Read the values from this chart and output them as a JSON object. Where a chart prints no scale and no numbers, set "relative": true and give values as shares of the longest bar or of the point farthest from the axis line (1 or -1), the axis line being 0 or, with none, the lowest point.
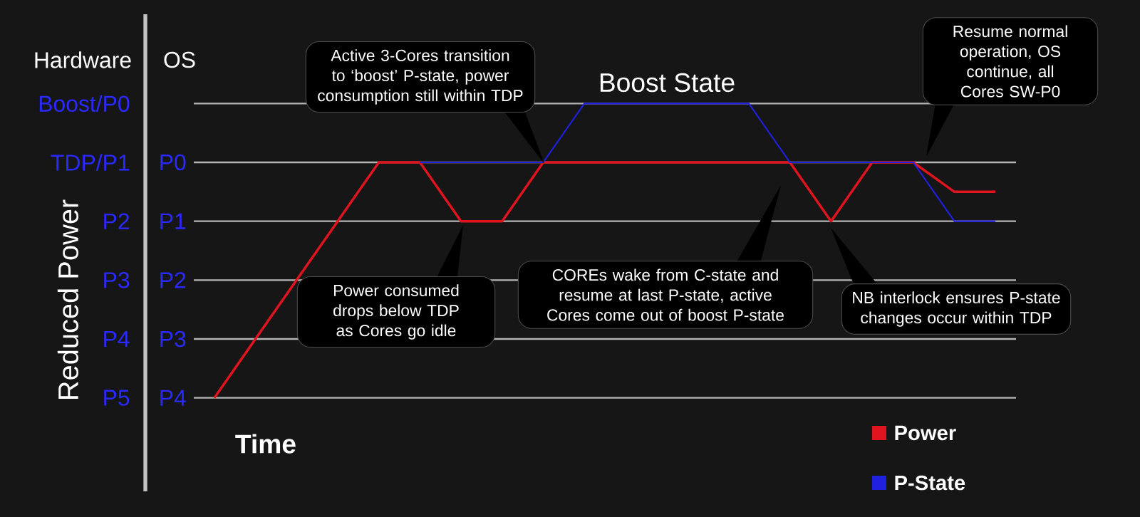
{
  "chart_data": {
    "type": "line",
    "relative": true,
    "xlabel": "Time",
    "ylabel": "Reduced Power",
    "annotations": [
      "Hardware",
      "OS",
      "Boost/P0",
      "TDP/P1",
      "P2",
      "P3",
      "P4",
      "P5",
      "P0",
      "P1",
      "P2",
      "P3",
      "P4",
      "Boost State",
      "Active 3-Cores transition to ‘boost’ P-state, power consumption still within TDP",
      "Power consumed drops below TDP as Cores go idle",
      "COREs wake from C-state and resume at last P-state, active Cores come out of boost P-state",
      "NB interlock ensures P-state changes occur within TDP",
      "Resume normal operation, OS continue, all Cores SW-P0"
    ],
    "categories": [
      null,
      null,
      null,
      null,
      null,
      null,
      null,
      null,
      null,
      null,
      null,
      null,
      null,
      null,
      null,
      null,
      null,
      null,
      null,
      null
    ],
    "series": [
      {
        "name": "Power",
        "color": "#e0141e",
        "values": [
          0,
          0.2,
          0.4,
          0.6,
          0.8,
          0.8,
          0.6,
          0.6,
          0.8,
          0.8,
          0.8,
          0.8,
          0.8,
          0.8,
          0.8,
          0.6,
          0.8,
          0.8,
          0.7,
          0.7
        ]
      },
      {
        "name": "P-State",
        "color": "#2020e0",
        "values": [
          null,
          null,
          null,
          null,
          null,
          0.8,
          0.8,
          0.8,
          0.8,
          1,
          1,
          1,
          1,
          1,
          0.8,
          0.8,
          0.8,
          0.8,
          0.6,
          0.6
        ]
      }
    ],
    "grid": "y",
    "legend": "bottom right",
    "tick_labels": false,
    "line_style": "solid"
  }
}
